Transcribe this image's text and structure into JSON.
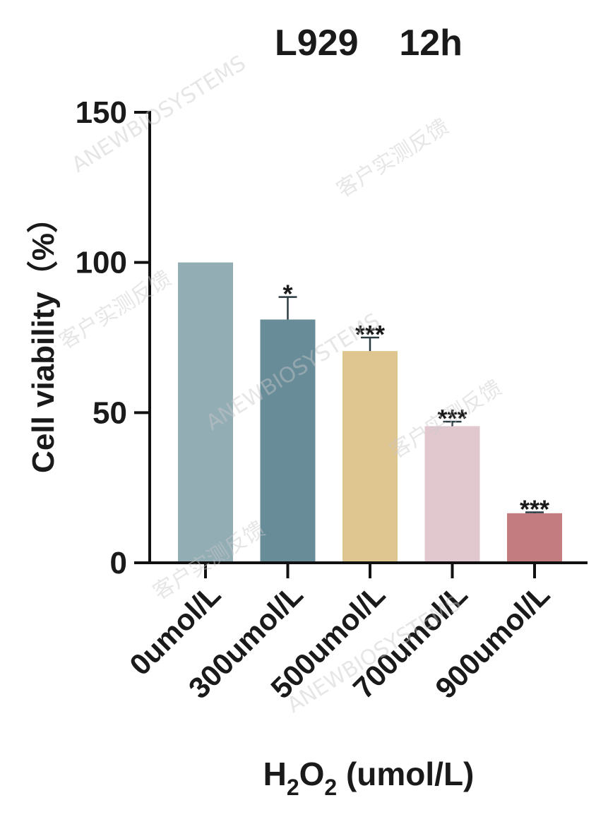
{
  "chart_data": {
    "type": "bar",
    "title": "L929    12h",
    "ylabel": "Cell viability（%）",
    "xlabel": {
      "prefix": "H",
      "sub1": "2",
      "mid": "O",
      "sub2": "2",
      "suffix": " (umol/L)"
    },
    "ylim": [
      0,
      150
    ],
    "yticks": [
      "0",
      "50",
      "100",
      "150"
    ],
    "grid": false,
    "categories": [
      "0umol/L",
      "300umol/L",
      "500umol/L",
      "700umol/L",
      "900umol/L"
    ],
    "values": [
      100,
      81,
      70.5,
      45.5,
      16.5
    ],
    "errors": [
      0,
      7.5,
      4.5,
      1.5,
      0.3
    ],
    "significance": [
      "",
      "*",
      "***",
      "***",
      "***"
    ],
    "colors": [
      "#93adb5",
      "#698c99",
      "#dfc58f",
      "#e1c8cf",
      "#c37d80"
    ]
  },
  "watermarks": [
    "ANEWBIOSYSTEMS",
    "客户实测反馈"
  ]
}
